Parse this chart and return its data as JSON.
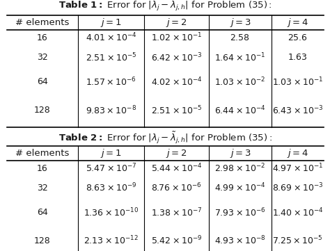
{
  "col_headers": [
    "# elements",
    "j = 1",
    "j = 2",
    "j = 3",
    "j = 4"
  ],
  "row_labels": [
    "16",
    "32",
    "64",
    "128"
  ],
  "table1_data": [
    [
      "4.01 \\times 10^{-4}",
      "1.02 \\times 10^{-1}",
      "2.58",
      "25.6"
    ],
    [
      "2.51 \\times 10^{-5}",
      "6.42 \\times 10^{-3}",
      "1.64 \\times 10^{-1}",
      "1.63"
    ],
    [
      "1.57 \\times 10^{-6}",
      "4.02 \\times 10^{-4}",
      "1.03 \\times 10^{-2}",
      "1.03 \\times 10^{-1}"
    ],
    [
      "9.83 \\times 10^{-8}",
      "2.51 \\times 10^{-5}",
      "6.44 \\times 10^{-4}",
      "6.43 \\times 10^{-3}"
    ]
  ],
  "table2_data": [
    [
      "5.47 \\times 10^{-7}",
      "5.44 \\times 10^{-4}",
      "2.98 \\times 10^{-2}",
      "4.97 \\times 10^{-1}"
    ],
    [
      "8.63 \\times 10^{-9}",
      "8.76 \\times 10^{-6}",
      "4.99 \\times 10^{-4}",
      "8.69 \\times 10^{-3}"
    ],
    [
      "1.36 \\times 10^{-10}",
      "1.38 \\times 10^{-7}",
      "7.93 \\times 10^{-6}",
      "1.40 \\times 10^{-4}"
    ],
    [
      "2.13 \\times 10^{-12}",
      "5.42 \\times 10^{-9}",
      "4.93 \\times 10^{-8}",
      "7.25 \\times 10^{-5}"
    ]
  ],
  "bg_color": "#ffffff",
  "text_color": "#1a1a1a",
  "title_fontsize": 9.5,
  "header_fontsize": 9.5,
  "cell_fontsize": 9.0
}
